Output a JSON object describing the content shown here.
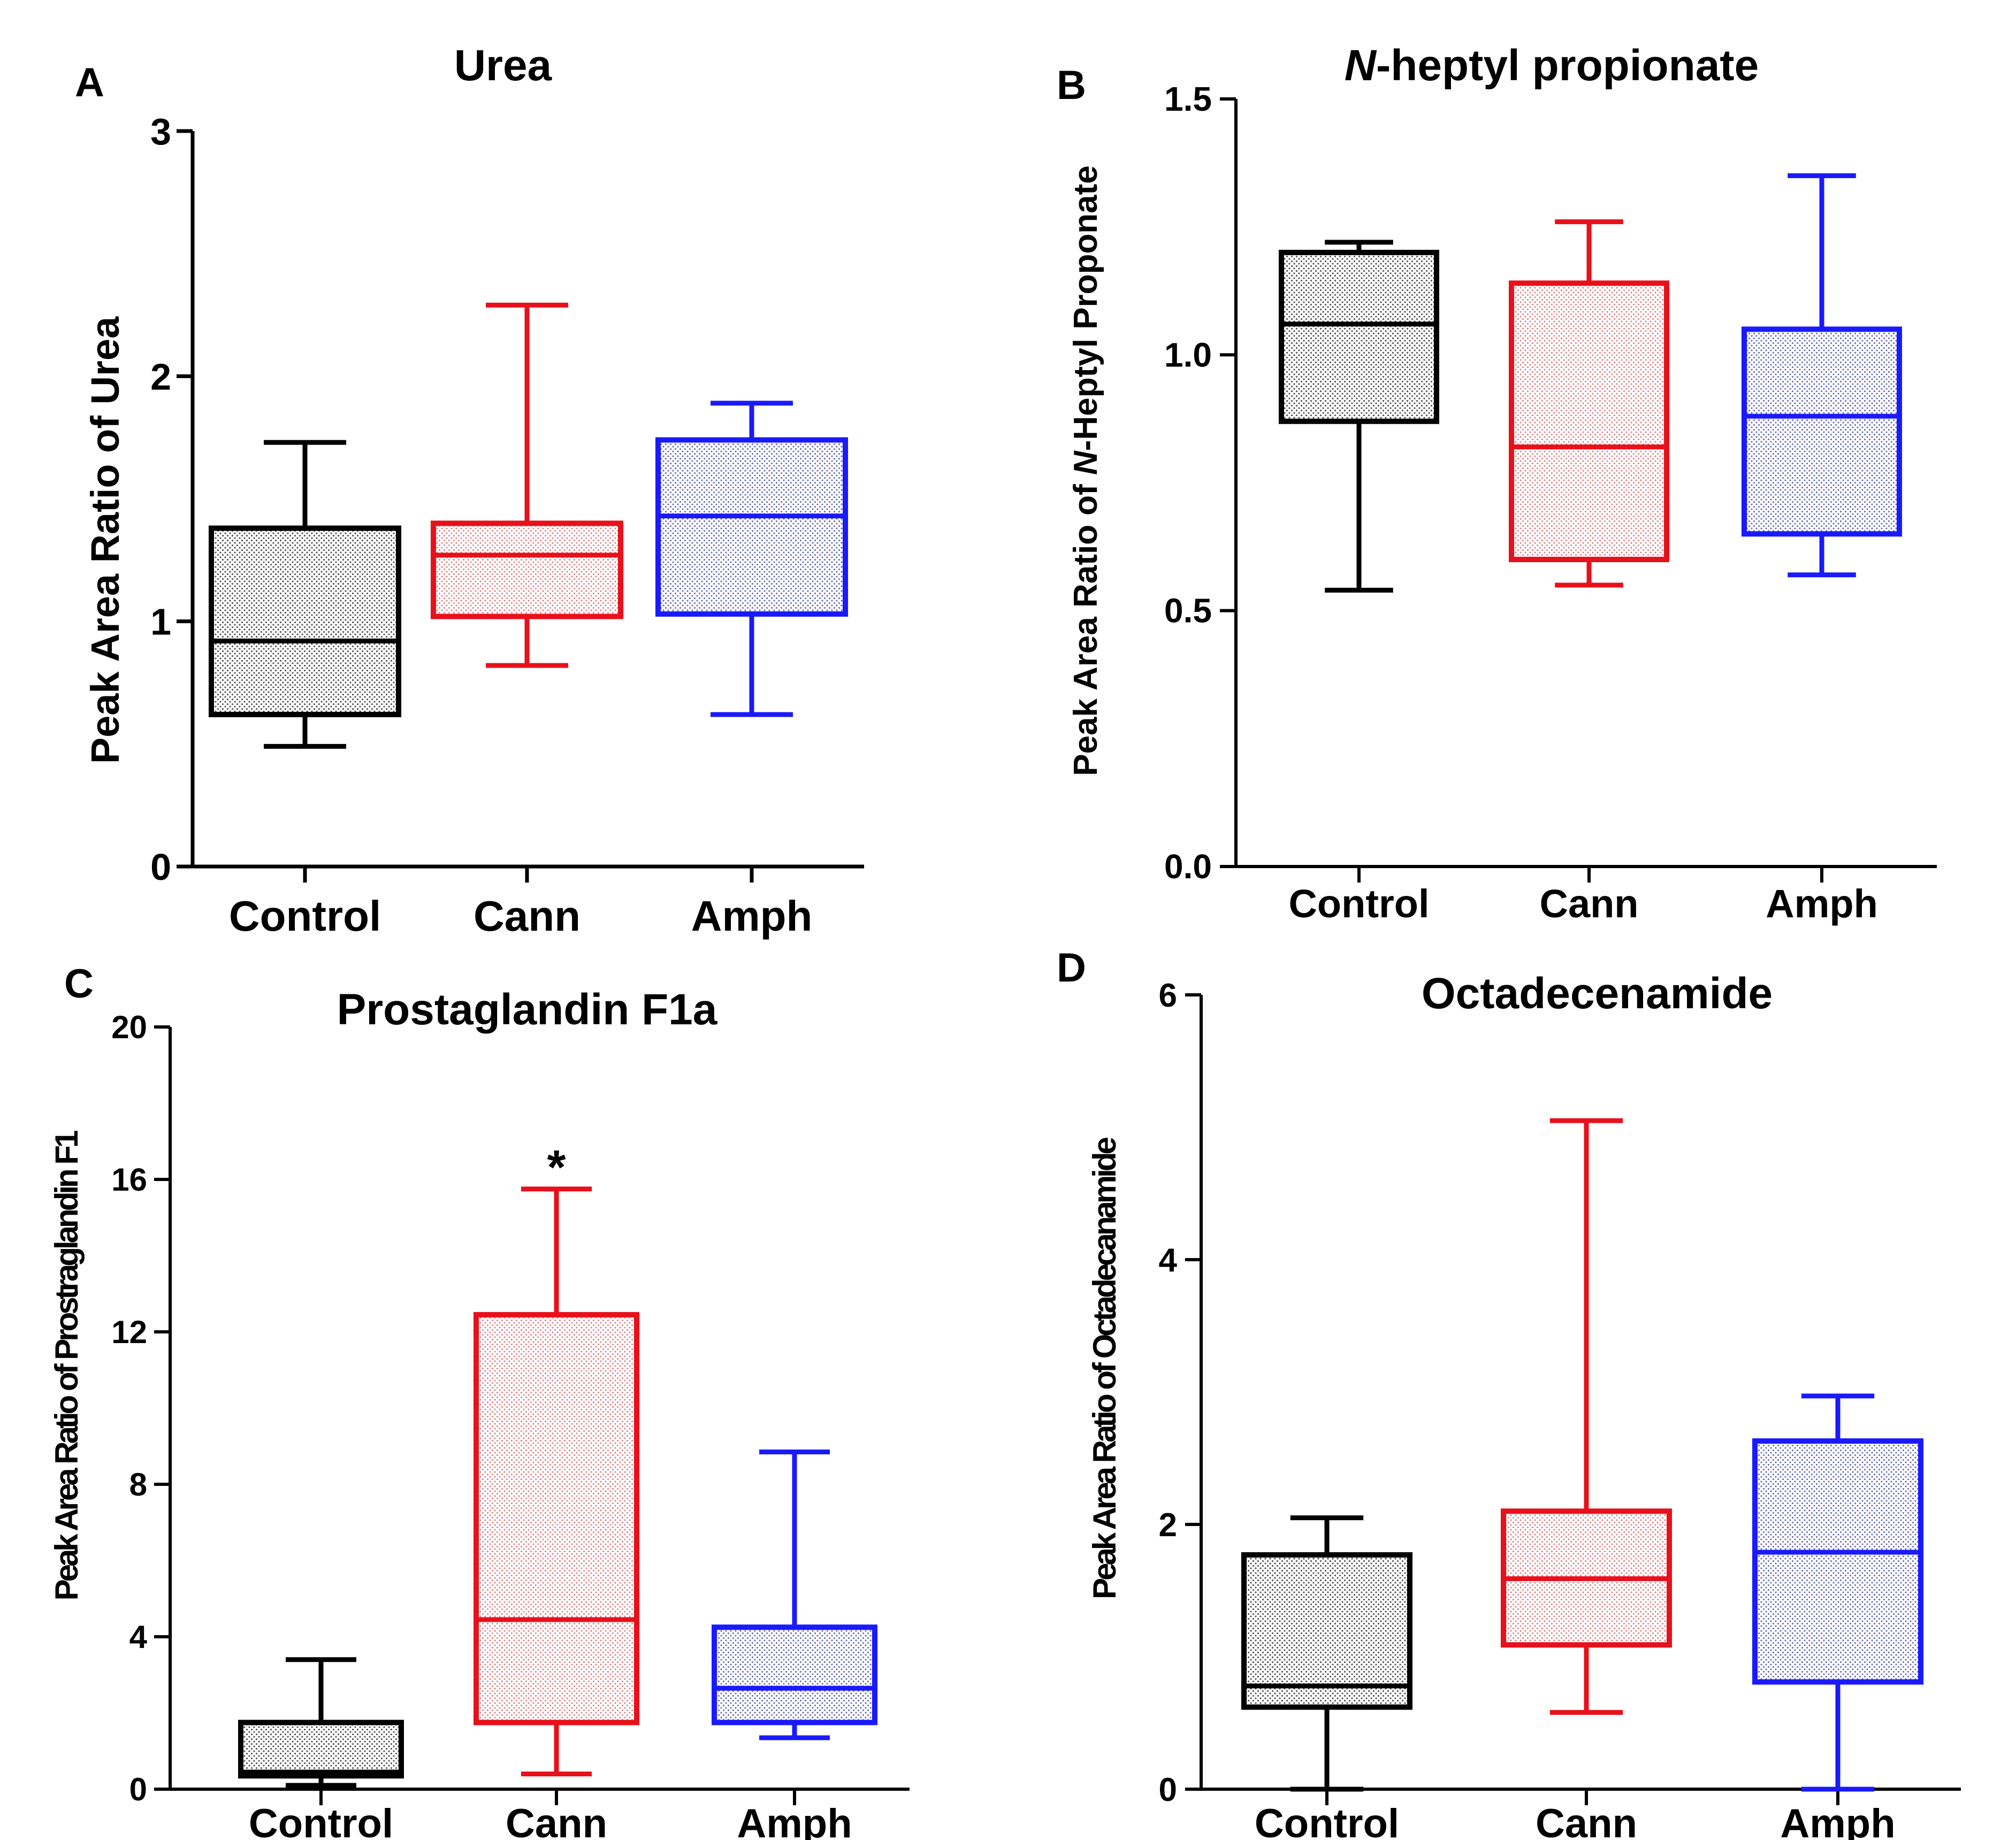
{
  "chart_data": [
    {
      "type": "box",
      "panel": "A",
      "title": "Urea",
      "ylabel": "Peak Area Ratio of Urea",
      "categories": [
        "Control",
        "Cann",
        "Amph"
      ],
      "ylim": [
        0,
        3
      ],
      "yticks": [
        "0",
        "1",
        "2",
        "3"
      ],
      "boxes": [
        {
          "name": "Control",
          "color": "#000000",
          "min": 0.49,
          "q1": 0.62,
          "median": 0.92,
          "q3": 1.38,
          "max": 1.73
        },
        {
          "name": "Cann",
          "color": "#e8101a",
          "min": 0.82,
          "q1": 1.02,
          "median": 1.27,
          "q3": 1.4,
          "max": 2.29
        },
        {
          "name": "Amph",
          "color": "#1a1aff",
          "min": 0.62,
          "q1": 1.03,
          "median": 1.43,
          "q3": 1.74,
          "max": 1.89
        }
      ]
    },
    {
      "type": "box",
      "panel": "B",
      "title": "N-heptyl propionate",
      "title_italic": "N",
      "title_rest": "-heptyl propionate",
      "ylabel": "Peak Area Ratio of N-Heptyl Proponate",
      "ylabel_pre": "Peak Area Ratio of ",
      "ylabel_italic": "N",
      "ylabel_post": "-Heptyl Proponate",
      "categories": [
        "Control",
        "Cann",
        "Amph"
      ],
      "ylim": [
        0,
        1.5
      ],
      "yticks": [
        "0.0",
        "0.5",
        "1.0",
        "1.5"
      ],
      "boxes": [
        {
          "name": "Control",
          "color": "#000000",
          "min": 0.54,
          "q1": 0.87,
          "median": 1.06,
          "q3": 1.2,
          "max": 1.22
        },
        {
          "name": "Cann",
          "color": "#e8101a",
          "min": 0.55,
          "q1": 0.6,
          "median": 0.82,
          "q3": 1.14,
          "max": 1.26
        },
        {
          "name": "Amph",
          "color": "#1a1aff",
          "min": 0.57,
          "q1": 0.65,
          "median": 0.88,
          "q3": 1.05,
          "max": 1.35
        }
      ]
    },
    {
      "type": "box",
      "panel": "C",
      "title": "Prostaglandin F1a",
      "ylabel": "Peak Area Ratio of Prostraglandin F1",
      "categories": [
        "Control",
        "Cann",
        "Amph"
      ],
      "ylim": [
        0,
        20
      ],
      "yticks": [
        "0",
        "4",
        "8",
        "12",
        "16",
        "20"
      ],
      "annotation": {
        "text": "*",
        "category": "Cann"
      },
      "boxes": [
        {
          "name": "Control",
          "color": "#000000",
          "min": 0.1,
          "q1": 0.35,
          "median": 0.45,
          "q3": 1.75,
          "max": 3.4
        },
        {
          "name": "Cann",
          "color": "#e8101a",
          "min": 0.4,
          "q1": 1.75,
          "median": 4.45,
          "q3": 12.45,
          "max": 15.75
        },
        {
          "name": "Amph",
          "color": "#1a1aff",
          "min": 1.35,
          "q1": 1.75,
          "median": 2.65,
          "q3": 4.25,
          "max": 8.85
        }
      ]
    },
    {
      "type": "box",
      "panel": "D",
      "title": "Octadecenamide",
      "ylabel": "Peak Area Ratio of Octadecanamide",
      "categories": [
        "Control",
        "Cann",
        "Amph"
      ],
      "ylim": [
        0,
        6
      ],
      "yticks": [
        "0",
        "2",
        "4",
        "6"
      ],
      "boxes": [
        {
          "name": "Control",
          "color": "#000000",
          "min": 0.0,
          "q1": 0.62,
          "median": 0.78,
          "q3": 1.77,
          "max": 2.05
        },
        {
          "name": "Cann",
          "color": "#e8101a",
          "min": 0.58,
          "q1": 1.09,
          "median": 1.59,
          "q3": 2.1,
          "max": 5.05
        },
        {
          "name": "Amph",
          "color": "#1a1aff",
          "min": 0.0,
          "q1": 0.81,
          "median": 1.79,
          "q3": 2.63,
          "max": 2.97
        }
      ]
    }
  ]
}
